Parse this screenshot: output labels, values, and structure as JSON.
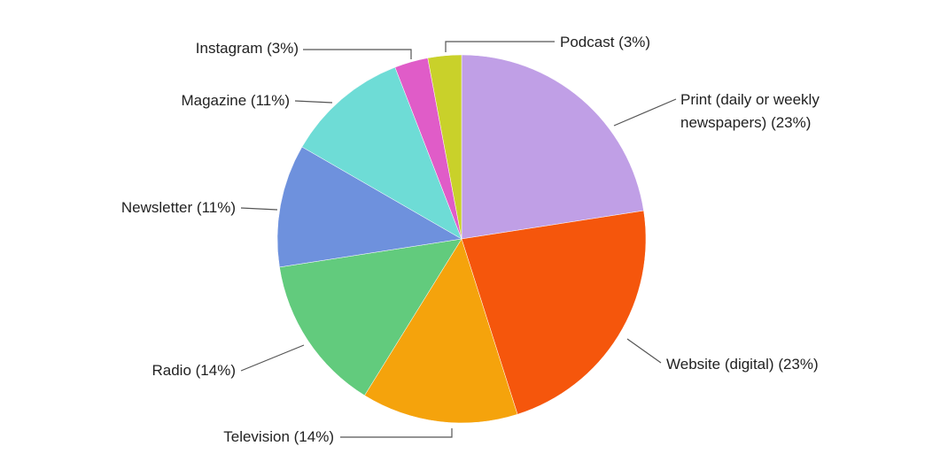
{
  "chart_data": {
    "type": "pie",
    "categories": [
      "Print (daily or weekly newspapers)",
      "Website (digital)",
      "Television",
      "Radio",
      "Newsletter",
      "Magazine",
      "Instagram",
      "Podcast"
    ],
    "values": [
      23,
      23,
      14,
      14,
      11,
      11,
      3,
      3
    ],
    "value_labels": [
      "(23%)",
      "(23%)",
      "(14%)",
      "(14%)",
      "(11%)",
      "(11%)",
      "(3%)",
      "(3%)"
    ],
    "colors": [
      "#c09fe6",
      "#f5560c",
      "#f5a30c",
      "#62cb7d",
      "#6e91dd",
      "#6edcd6",
      "#e05cc8",
      "#c9d12a"
    ]
  }
}
